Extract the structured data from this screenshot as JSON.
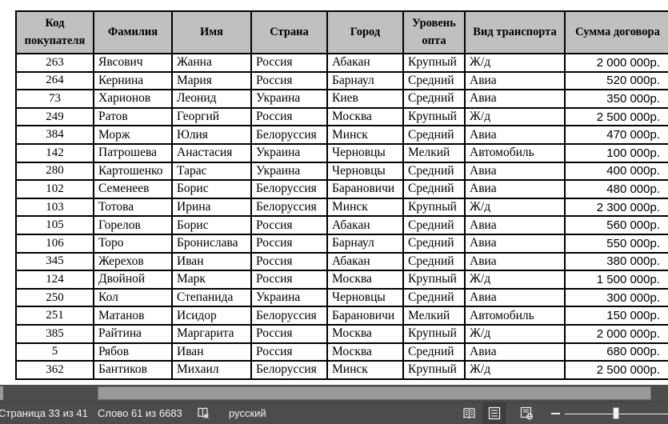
{
  "table": {
    "headers": [
      "Код покупателя",
      "Фамилия",
      "Имя",
      "Страна",
      "Город",
      "Уровень опта",
      "Вид транспорта",
      "Сумма договора"
    ],
    "rows": [
      [
        "263",
        "Явсович",
        "Жанна",
        "Россия",
        "Абакан",
        "Крупный",
        "Ж/д",
        "2 000 000р."
      ],
      [
        "264",
        "Кернина",
        "Мария",
        "Россия",
        "Барнаул",
        "Средний",
        "Авиа",
        "520 000р."
      ],
      [
        "73",
        "Харионов",
        "Леонид",
        "Украина",
        "Киев",
        "Средний",
        "Авиа",
        "350 000р."
      ],
      [
        "249",
        "Ратов",
        "Георгий",
        "Россия",
        "Москва",
        "Крупный",
        "Ж/д",
        "2 500 000р."
      ],
      [
        "384",
        "Морж",
        "Юлия",
        "Белоруссия",
        "Минск",
        "Средний",
        "Авиа",
        "470 000р."
      ],
      [
        "142",
        "Патрошева",
        "Анастасия",
        "Украина",
        "Черновцы",
        "Мелкий",
        "Автомобиль",
        "100 000р."
      ],
      [
        "280",
        "Картошенко",
        "Тарас",
        "Украина",
        "Черновцы",
        "Средний",
        "Авиа",
        "400 000р."
      ],
      [
        "102",
        "Семенеев",
        "Борис",
        "Белоруссия",
        "Барановичи",
        "Средний",
        "Авиа",
        "480 000р."
      ],
      [
        "103",
        "Тотова",
        "Ирина",
        "Белоруссия",
        "Минск",
        "Крупный",
        "Ж/д",
        "2 300 000р."
      ],
      [
        "105",
        "Горелов",
        "Борис",
        "Россия",
        "Абакан",
        "Средний",
        "Авиа",
        "560 000р."
      ],
      [
        "106",
        "Торо",
        "Бронислава",
        "Россия",
        "Барнаул",
        "Средний",
        "Авиа",
        "550 000р."
      ],
      [
        "345",
        "Жерехов",
        "Иван",
        "Россия",
        "Абакан",
        "Средний",
        "Авиа",
        "380 000р."
      ],
      [
        "124",
        "Двойной",
        "Марк",
        "Россия",
        "Москва",
        "Крупный",
        "Ж/д",
        "1 500 000р."
      ],
      [
        "250",
        "Кол",
        "Степанида",
        "Украина",
        "Черновцы",
        "Средний",
        "Авиа",
        "300 000р."
      ],
      [
        "251",
        "Матанов",
        "Исидор",
        "Белоруссия",
        "Барановичи",
        "Мелкий",
        "Автомобиль",
        "150 000р."
      ],
      [
        "385",
        "Райтина",
        "Маргарита",
        "Россия",
        "Москва",
        "Крупный",
        "Ж/д",
        "2 000 000р."
      ],
      [
        "5",
        "Рябов",
        "Иван",
        "Россия",
        "Москва",
        "Средний",
        "Авиа",
        "680 000р."
      ],
      [
        "362",
        "Бантиков",
        "Михаил",
        "Белоруссия",
        "Минск",
        "Крупный",
        "Ж/д",
        "2 500 000р."
      ]
    ]
  },
  "status_bar": {
    "page_indicator": "Страница 33 из 41",
    "word_count": "Слово 61 из 6683",
    "language": "русский",
    "icons": {
      "proofing": "proofing-errors-book-x-icon",
      "read_mode": "read-mode-book-icon",
      "print_layout": "print-layout-page-icon",
      "web_layout": "web-layout-page-globe-icon",
      "zoom_out": "zoom-out-minus-icon"
    }
  },
  "colors": {
    "table_header_bg": "#c0c0c0",
    "table_border": "#000000",
    "status_bar_bg": "#4c4c4c",
    "status_bar_text": "#f1f1f1",
    "scrollbar_thumb": "#9a9a9a",
    "active_view_button_bg": "#3e3e3e"
  }
}
